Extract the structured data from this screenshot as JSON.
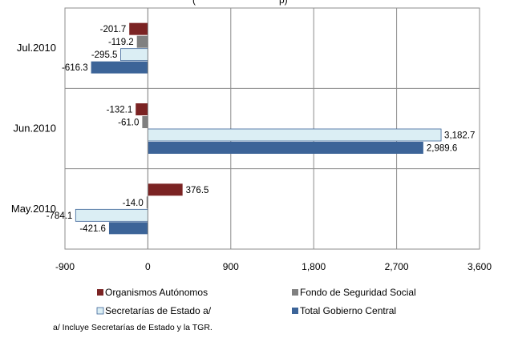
{
  "chart_data": {
    "type": "bar",
    "orientation": "horizontal",
    "title": "",
    "partial_title": "(",
    "partial_title_tail": "p)",
    "categories": [
      "Jul.2010",
      "Jun.2010",
      "May.2010"
    ],
    "series": [
      {
        "name": "Organismos Autónomos",
        "color": "#7b2323",
        "values": [
          -201.7,
          -132.1,
          376.5
        ],
        "labels": [
          "-201.7",
          "-132.1",
          "376.5"
        ]
      },
      {
        "name": "Fondo de Seguridad Social",
        "color": "#808080",
        "values": [
          -119.2,
          -61.0,
          -14.0
        ],
        "labels": [
          "-119.2",
          "-61.0",
          "-14.0"
        ]
      },
      {
        "name": "Secretarías de Estado a/",
        "color": "#dbeef4",
        "values": [
          -295.5,
          3182.7,
          -784.1
        ],
        "labels": [
          "-295.5",
          "3,182.7",
          "-784.1"
        ]
      },
      {
        "name": "Total Gobierno Central",
        "color": "#3c6498",
        "values": [
          -616.3,
          2989.6,
          -421.6
        ],
        "labels": [
          "-616.3",
          "2,989.6",
          "-421.6"
        ]
      }
    ],
    "xlim": [
      -900,
      3600
    ],
    "ticks": [
      -900,
      0,
      900,
      1800,
      2700,
      3600
    ],
    "tick_labels": [
      "-900",
      "0",
      "900",
      "1,800",
      "2,700",
      "3,600"
    ],
    "grid": true,
    "legend_position": "bottom",
    "footnote": "a/ Incluye Secretarías de Estado y la TGR."
  }
}
